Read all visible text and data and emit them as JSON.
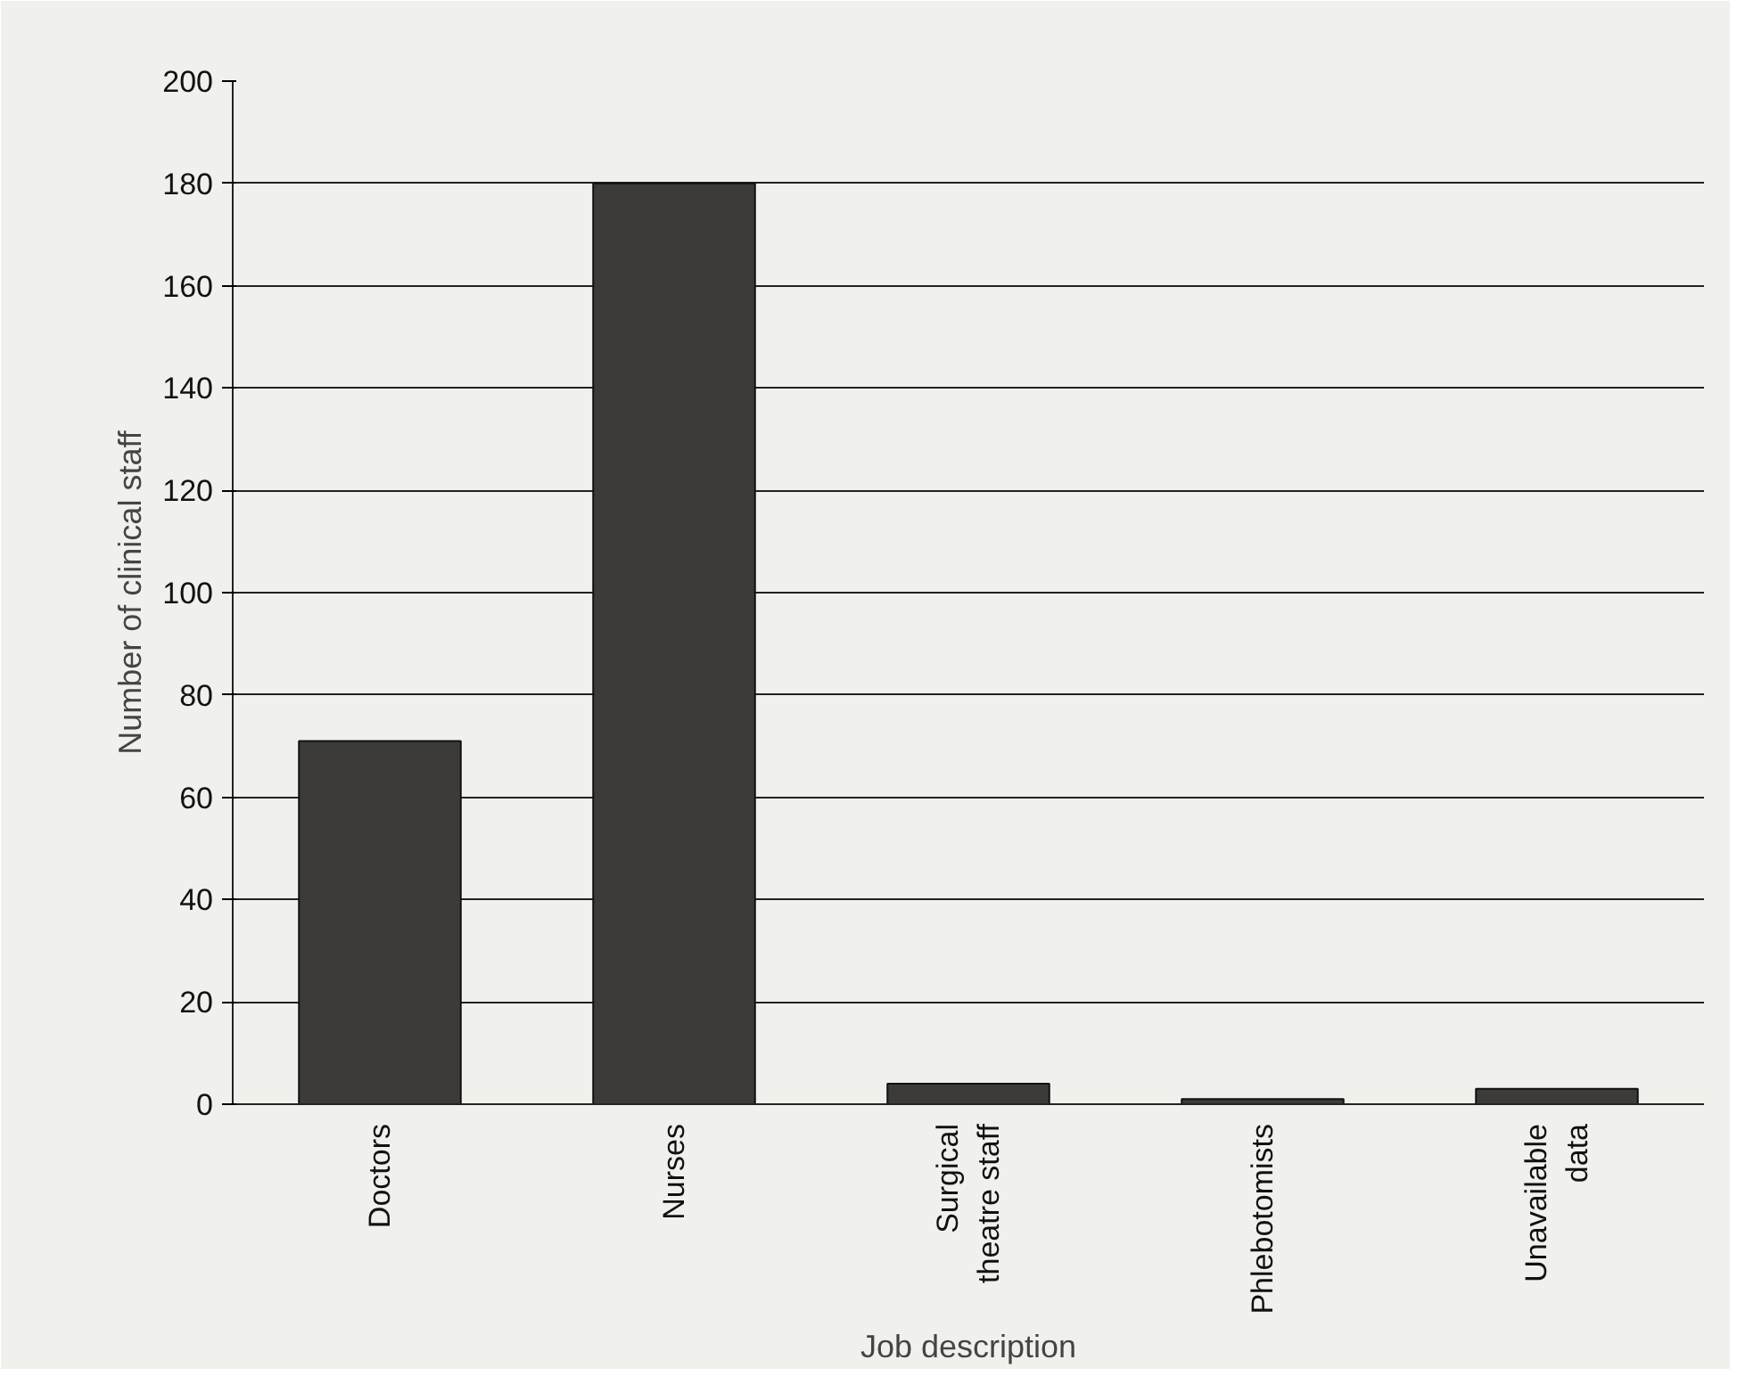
{
  "chart_data": {
    "type": "bar",
    "xlabel": "Job description",
    "ylabel": "Number of clinical staff",
    "categories": [
      "Doctors",
      "Nurses",
      "Surgical\ntheatre staff",
      "Phlebotomists",
      "Unavailable\ndata"
    ],
    "values": [
      71,
      180,
      4,
      1,
      3
    ],
    "color": "#3d3b38",
    "ylim": [
      0,
      200
    ],
    "yticks": [
      0,
      20,
      40,
      60,
      80,
      100,
      120,
      140,
      160,
      180,
      200
    ],
    "grid": "y"
  }
}
